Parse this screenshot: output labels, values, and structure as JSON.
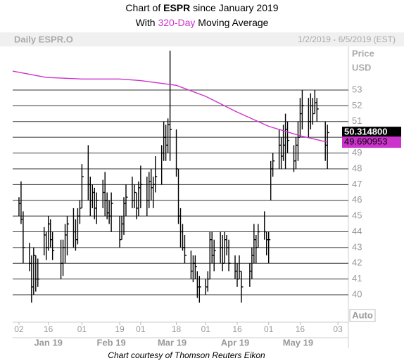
{
  "chart_data": {
    "type": "ohlc",
    "title_prefix": "Chart of",
    "ticker": "ESPR",
    "title_suffix": "since January 2019",
    "subtitle_prefix": "With",
    "ma_period": "320-Day",
    "subtitle_suffix": "Moving Average",
    "symbol_label": "Daily ESPR.O",
    "date_range": "1/2/2019 - 6/5/2019 (EST)",
    "y_label_1": "Price",
    "y_label_2": "USD",
    "auto_button": "Auto",
    "footer": "Chart courtesy of Thomson Reuters Eikon",
    "color": "#000000",
    "ma_color": "#cc33cc",
    "grid": true,
    "ylim": [
      38.26,
      55.77
    ],
    "yticks": [
      40,
      41,
      42,
      43,
      44,
      45,
      46,
      47,
      48,
      49,
      50,
      51,
      52,
      53
    ],
    "xlim": [
      "2018-12-30",
      "2019-06-08"
    ],
    "xticks": [
      {
        "value": "2019-01-02",
        "label": "02"
      },
      {
        "value": "2019-01-16",
        "label": "16"
      },
      {
        "value": "2019-02-01",
        "label": "01"
      },
      {
        "value": "2019-02-19",
        "label": "19"
      },
      {
        "value": "2019-03-01",
        "label": "01"
      },
      {
        "value": "2019-03-18",
        "label": "18"
      },
      {
        "value": "2019-04-01",
        "label": "01"
      },
      {
        "value": "2019-04-16",
        "label": "16"
      },
      {
        "value": "2019-05-01",
        "label": "01"
      },
      {
        "value": "2019-05-16",
        "label": "16"
      },
      {
        "value": "2019-06-03",
        "label": "03"
      }
    ],
    "month_labels": [
      {
        "value": "2019-01-16",
        "label": "Jan 19"
      },
      {
        "value": "2019-02-15",
        "label": "Feb 19"
      },
      {
        "value": "2019-03-16",
        "label": "Mar 19"
      },
      {
        "value": "2019-04-15",
        "label": "Apr 19"
      },
      {
        "value": "2019-05-15",
        "label": "May 19"
      }
    ],
    "dates": [
      "2019-01-02",
      "2019-01-03",
      "2019-01-04",
      "2019-01-07",
      "2019-01-08",
      "2019-01-09",
      "2019-01-10",
      "2019-01-11",
      "2019-01-14",
      "2019-01-15",
      "2019-01-16",
      "2019-01-17",
      "2019-01-18",
      "2019-01-22",
      "2019-01-23",
      "2019-01-24",
      "2019-01-25",
      "2019-01-28",
      "2019-01-29",
      "2019-01-30",
      "2019-01-31",
      "2019-02-01",
      "2019-02-04",
      "2019-02-05",
      "2019-02-06",
      "2019-02-07",
      "2019-02-08",
      "2019-02-11",
      "2019-02-12",
      "2019-02-13",
      "2019-02-14",
      "2019-02-15",
      "2019-02-19",
      "2019-02-20",
      "2019-02-21",
      "2019-02-22",
      "2019-02-25",
      "2019-02-26",
      "2019-02-27",
      "2019-02-28",
      "2019-03-01",
      "2019-03-04",
      "2019-03-05",
      "2019-03-06",
      "2019-03-07",
      "2019-03-08",
      "2019-03-11",
      "2019-03-12",
      "2019-03-13",
      "2019-03-14",
      "2019-03-15",
      "2019-03-18",
      "2019-03-19",
      "2019-03-20",
      "2019-03-21",
      "2019-03-22",
      "2019-03-25",
      "2019-03-26",
      "2019-03-27",
      "2019-03-28",
      "2019-03-29",
      "2019-04-01",
      "2019-04-02",
      "2019-04-03",
      "2019-04-04",
      "2019-04-05",
      "2019-04-08",
      "2019-04-09",
      "2019-04-10",
      "2019-04-11",
      "2019-04-12",
      "2019-04-15",
      "2019-04-16",
      "2019-04-17",
      "2019-04-18",
      "2019-04-22",
      "2019-04-23",
      "2019-04-24",
      "2019-04-25",
      "2019-04-26",
      "2019-04-29",
      "2019-04-30",
      "2019-05-01",
      "2019-05-02",
      "2019-05-03",
      "2019-05-06",
      "2019-05-07",
      "2019-05-08",
      "2019-05-09",
      "2019-05-10",
      "2019-05-13",
      "2019-05-14",
      "2019-05-15",
      "2019-05-16",
      "2019-05-17",
      "2019-05-20",
      "2019-05-21",
      "2019-05-22",
      "2019-05-23",
      "2019-05-24",
      "2019-05-28",
      "2019-05-29"
    ],
    "low": [
      45.0,
      44.5,
      42.0,
      41.5,
      39.5,
      40.0,
      40.2,
      40.5,
      42.5,
      42.2,
      42.8,
      43.0,
      42.2,
      41.0,
      41.2,
      42.0,
      42.5,
      43.0,
      42.8,
      43.2,
      44.5,
      45.5,
      46.0,
      45.0,
      45.5,
      44.8,
      44.5,
      45.5,
      45.0,
      44.8,
      44.5,
      44.0,
      43.0,
      43.5,
      43.8,
      45.0,
      45.5,
      45.5,
      44.8,
      45.0,
      45.5,
      45.0,
      45.5,
      46.0,
      45.5,
      46.5,
      47.0,
      48.5,
      48.5,
      49.0,
      48.5,
      47.5,
      44.5,
      43.0,
      42.8,
      42.0,
      41.0,
      40.8,
      41.0,
      39.8,
      39.5,
      40.0,
      40.2,
      41.0,
      42.0,
      41.5,
      42.0,
      41.5,
      42.0,
      42.5,
      41.5,
      41.0,
      40.5,
      41.0,
      39.5,
      40.5,
      41.0,
      42.0,
      42.0,
      43.0,
      43.5,
      42.5,
      42.0,
      46.0,
      47.5,
      48.0,
      48.0,
      48.5,
      48.0,
      49.0,
      47.8,
      48.0,
      48.5,
      50.0,
      50.5,
      50.0,
      50.5,
      50.8,
      51.5,
      51.0,
      48.5,
      48.0
    ],
    "high": [
      46.2,
      47.2,
      45.3,
      43.3,
      42.5,
      43.0,
      42.5,
      42.3,
      44.3,
      44.0,
      45.0,
      44.8,
      44.0,
      43.5,
      43.5,
      44.5,
      45.0,
      45.5,
      44.8,
      45.5,
      46.0,
      48.3,
      49.5,
      47.5,
      47.0,
      46.8,
      46.5,
      47.3,
      47.8,
      46.5,
      46.0,
      46.5,
      45.0,
      45.0,
      46.2,
      47.0,
      47.5,
      47.0,
      46.5,
      47.2,
      48.2,
      47.5,
      47.8,
      48.0,
      47.5,
      48.8,
      49.5,
      51.0,
      50.8,
      51.2,
      55.5,
      50.5,
      48.0,
      45.5,
      44.5,
      43.8,
      42.8,
      42.5,
      42.5,
      41.5,
      41.2,
      41.0,
      41.5,
      44.0,
      44.0,
      43.5,
      44.0,
      43.8,
      44.0,
      43.8,
      43.5,
      42.5,
      42.0,
      42.5,
      41.5,
      42.0,
      43.0,
      44.5,
      43.8,
      44.5,
      45.3,
      44.0,
      44.0,
      48.5,
      49.0,
      50.5,
      50.0,
      50.8,
      51.5,
      51.0,
      49.5,
      50.0,
      51.0,
      52.5,
      53.0,
      52.5,
      52.8,
      52.5,
      53.0,
      52.5,
      51.0,
      50.8
    ],
    "close": [
      45.8,
      44.8,
      43.0,
      42.0,
      40.5,
      42.5,
      41.0,
      41.0,
      43.8,
      43.0,
      44.5,
      43.5,
      42.8,
      42.0,
      43.0,
      43.8,
      44.5,
      44.0,
      43.5,
      45.0,
      45.5,
      47.5,
      47.0,
      46.0,
      46.5,
      45.5,
      46.0,
      46.5,
      46.0,
      45.2,
      45.0,
      45.8,
      43.5,
      44.5,
      45.8,
      46.2,
      46.0,
      46.5,
      45.5,
      46.8,
      47.0,
      46.0,
      47.2,
      46.8,
      47.0,
      47.5,
      49.0,
      50.0,
      49.5,
      50.8,
      50.5,
      48.0,
      45.0,
      44.0,
      43.0,
      42.5,
      41.5,
      42.0,
      41.8,
      40.5,
      40.5,
      40.5,
      41.0,
      43.5,
      42.5,
      42.8,
      43.0,
      42.0,
      43.5,
      43.0,
      42.0,
      41.5,
      41.0,
      41.5,
      40.5,
      41.5,
      42.5,
      43.5,
      43.0,
      44.0,
      44.0,
      43.5,
      43.5,
      48.0,
      48.5,
      49.5,
      48.8,
      49.5,
      50.5,
      49.8,
      48.5,
      49.5,
      50.0,
      51.5,
      52.0,
      51.0,
      52.0,
      51.5,
      52.2,
      51.8,
      49.5,
      50.3
    ],
    "ma": {
      "x": [
        "2018-12-30",
        "2019-01-15",
        "2019-02-01",
        "2019-02-19",
        "2019-03-01",
        "2019-03-18",
        "2019-04-01",
        "2019-04-16",
        "2019-05-01",
        "2019-05-16",
        "2019-05-29"
      ],
      "values": [
        54.2,
        53.8,
        53.7,
        53.7,
        53.6,
        53.3,
        52.6,
        51.6,
        50.7,
        50.1,
        49.690953
      ]
    },
    "last_price": {
      "value": 50.3148,
      "label": "50.314800"
    },
    "ma_last": 49.690953
  }
}
